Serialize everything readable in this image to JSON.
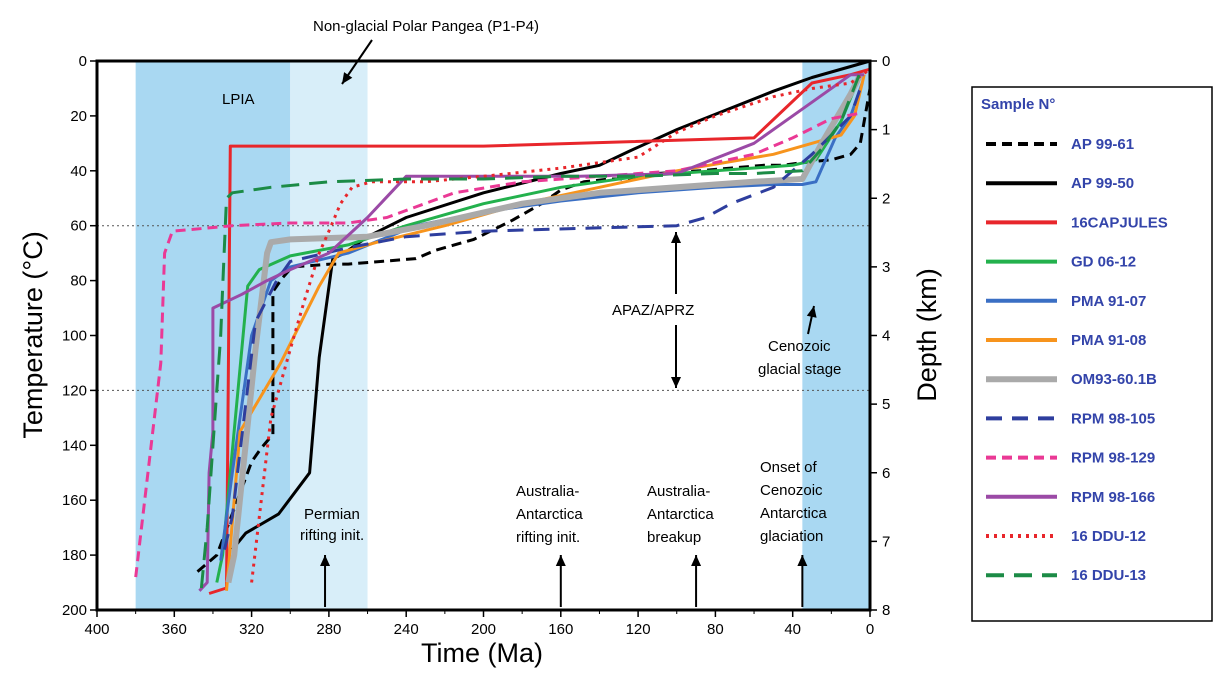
{
  "chart_data": {
    "type": "line",
    "xlabel": "Time (Ma)",
    "ylabel": "Temperature (°C)",
    "y2label": "Depth (km)",
    "xlim": [
      400,
      0
    ],
    "ylim": [
      0,
      200
    ],
    "y2lim": [
      0,
      8
    ],
    "x_ticks": [
      400,
      360,
      320,
      280,
      240,
      200,
      160,
      120,
      80,
      40,
      0
    ],
    "y_ticks": [
      0,
      20,
      40,
      60,
      80,
      100,
      120,
      140,
      160,
      180,
      200
    ],
    "y2_ticks": [
      0,
      1,
      2,
      3,
      4,
      5,
      6,
      7,
      8
    ],
    "legend_title": "Sample N°",
    "legend_position": "right",
    "regions": [
      {
        "name": "LPIA",
        "label": "LPIA",
        "x": [
          380,
          300
        ],
        "color": "#a9d8f2"
      },
      {
        "name": "non-glacial",
        "label": "",
        "x": [
          300,
          260
        ],
        "color": "#d8eef9"
      },
      {
        "name": "cenozoic-glacial",
        "label": "",
        "x": [
          35,
          0
        ],
        "color": "#a9d8f2"
      }
    ],
    "hlines": [
      {
        "y": 60,
        "style": "dotted"
      },
      {
        "y": 120,
        "style": "dotted"
      }
    ],
    "annotations": {
      "non_glacial": "Non-glacial Polar Pangea (P1-P4)",
      "lpia": "LPIA",
      "apaz": "APAZ/APRZ",
      "cenozoic_glacial_1": "Cenozoic",
      "cenozoic_glacial_2": "glacial stage",
      "permian_1": "Permian",
      "permian_2": "rifting init.",
      "aa_rift_1": "Australia-",
      "aa_rift_2": "Antarctica",
      "aa_rift_3": "rifting init.",
      "aa_break_1": "Australia-",
      "aa_break_2": "Antarctica",
      "aa_break_3": "breakup",
      "onset_1": "Onset of",
      "onset_2": "Cenozoic",
      "onset_3": "Antarctica",
      "onset_4": "glaciation"
    },
    "event_arrows": [
      {
        "x": 282,
        "name": "permian-rifting"
      },
      {
        "x": 160,
        "name": "aa-rifting"
      },
      {
        "x": 90,
        "name": "aa-breakup"
      },
      {
        "x": 35,
        "name": "onset-glaciation"
      }
    ],
    "series": [
      {
        "name": "AP 99-61",
        "color": "#000000",
        "dash": "10,6",
        "width": 3,
        "points": [
          [
            348,
            186
          ],
          [
            338,
            180
          ],
          [
            330,
            165
          ],
          [
            320,
            146
          ],
          [
            315,
            141
          ],
          [
            309,
            136
          ],
          [
            309,
            84
          ],
          [
            304,
            79
          ],
          [
            299,
            75
          ],
          [
            279,
            74
          ],
          [
            270,
            74
          ],
          [
            235,
            72
          ],
          [
            225,
            69
          ],
          [
            205,
            65
          ],
          [
            185,
            58
          ],
          [
            170,
            52
          ],
          [
            160,
            47
          ],
          [
            148,
            44
          ],
          [
            135,
            43
          ],
          [
            120,
            43
          ],
          [
            110,
            41
          ],
          [
            88,
            40
          ],
          [
            72,
            39
          ],
          [
            55,
            38
          ],
          [
            45,
            38
          ],
          [
            35,
            37
          ],
          [
            20,
            36
          ],
          [
            10,
            34
          ],
          [
            5,
            30
          ],
          [
            0,
            10
          ]
        ]
      },
      {
        "name": "AP 99-50",
        "color": "#000000",
        "dash": "",
        "width": 3,
        "points": [
          [
            330,
            178
          ],
          [
            323,
            172
          ],
          [
            306,
            165
          ],
          [
            290,
            150
          ],
          [
            285,
            108
          ],
          [
            278,
            72
          ],
          [
            272,
            70
          ],
          [
            260,
            64
          ],
          [
            240,
            57
          ],
          [
            200,
            48
          ],
          [
            160,
            41
          ],
          [
            140,
            38
          ],
          [
            125,
            33
          ],
          [
            100,
            25
          ],
          [
            50,
            11
          ],
          [
            30,
            6
          ],
          [
            0,
            0
          ]
        ]
      },
      {
        "name": "16CAPJULES",
        "color": "#e8262b",
        "dash": "",
        "width": 3,
        "points": [
          [
            342,
            194
          ],
          [
            333,
            192
          ],
          [
            331,
            31
          ],
          [
            260,
            31
          ],
          [
            200,
            31
          ],
          [
            60,
            28
          ],
          [
            30,
            8
          ],
          [
            10,
            5
          ],
          [
            0,
            3
          ]
        ]
      },
      {
        "name": "GD 06-12",
        "color": "#23b14d",
        "dash": "",
        "width": 3,
        "points": [
          [
            338,
            190
          ],
          [
            335,
            180
          ],
          [
            322,
            82
          ],
          [
            316,
            76
          ],
          [
            300,
            71
          ],
          [
            270,
            67
          ],
          [
            240,
            60
          ],
          [
            200,
            52
          ],
          [
            160,
            46
          ],
          [
            120,
            42
          ],
          [
            80,
            40
          ],
          [
            40,
            38
          ],
          [
            28,
            36
          ],
          [
            15,
            22
          ],
          [
            5,
            5
          ]
        ]
      },
      {
        "name": "PMA 91-07",
        "color": "#3a6fc4",
        "dash": "",
        "width": 3,
        "points": [
          [
            336,
            182
          ],
          [
            330,
            150
          ],
          [
            320,
            100
          ],
          [
            310,
            80
          ],
          [
            300,
            75
          ],
          [
            270,
            70
          ],
          [
            235,
            60
          ],
          [
            200,
            55
          ],
          [
            160,
            51
          ],
          [
            120,
            48
          ],
          [
            80,
            46
          ],
          [
            50,
            45
          ],
          [
            35,
            45
          ],
          [
            28,
            44
          ],
          [
            18,
            28
          ],
          [
            10,
            20
          ],
          [
            4,
            8
          ]
        ]
      },
      {
        "name": "PMA 91-08",
        "color": "#f7941d",
        "dash": "",
        "width": 3,
        "points": [
          [
            333,
            193
          ],
          [
            326,
            135
          ],
          [
            305,
            110
          ],
          [
            285,
            82
          ],
          [
            275,
            70
          ],
          [
            255,
            66
          ],
          [
            220,
            60
          ],
          [
            180,
            52
          ],
          [
            140,
            46
          ],
          [
            100,
            40
          ],
          [
            50,
            34
          ],
          [
            30,
            30
          ],
          [
            15,
            27
          ],
          [
            8,
            20
          ],
          [
            3,
            5
          ]
        ]
      },
      {
        "name": "OM93-60.1B",
        "color": "#aaaaaa",
        "dash": "",
        "width": 6,
        "points": [
          [
            332,
            190
          ],
          [
            329,
            180
          ],
          [
            318,
            105
          ],
          [
            312,
            70
          ],
          [
            310,
            66
          ],
          [
            300,
            65
          ],
          [
            260,
            64
          ],
          [
            230,
            60
          ],
          [
            180,
            52
          ],
          [
            140,
            48
          ],
          [
            100,
            46
          ],
          [
            60,
            44
          ],
          [
            35,
            43
          ],
          [
            25,
            30
          ],
          [
            10,
            12
          ],
          [
            5,
            5
          ]
        ]
      },
      {
        "name": "RPM 98-105",
        "color": "#2e3e9e",
        "dash": "16,10",
        "width": 3,
        "points": [
          [
            334,
            178
          ],
          [
            330,
            166
          ],
          [
            318,
            95
          ],
          [
            307,
            80
          ],
          [
            300,
            73
          ],
          [
            270,
            68
          ],
          [
            240,
            64
          ],
          [
            200,
            62
          ],
          [
            150,
            61
          ],
          [
            100,
            60
          ],
          [
            85,
            57
          ],
          [
            72,
            52
          ],
          [
            50,
            46
          ],
          [
            30,
            34
          ],
          [
            10,
            20
          ],
          [
            5,
            10
          ]
        ]
      },
      {
        "name": "RPM 98-129",
        "color": "#ea3995",
        "dash": "10,6",
        "width": 3,
        "points": [
          [
            380,
            188
          ],
          [
            367,
            110
          ],
          [
            365,
            70
          ],
          [
            361,
            62
          ],
          [
            345,
            61
          ],
          [
            330,
            60
          ],
          [
            300,
            59
          ],
          [
            270,
            59
          ],
          [
            250,
            57
          ],
          [
            215,
            48
          ],
          [
            180,
            44
          ],
          [
            140,
            42
          ],
          [
            100,
            40
          ],
          [
            60,
            34
          ],
          [
            40,
            28
          ],
          [
            20,
            21
          ],
          [
            5,
            19
          ]
        ]
      },
      {
        "name": "RPM 98-166",
        "color": "#9b4aa6",
        "dash": "",
        "width": 3,
        "points": [
          [
            347,
            193
          ],
          [
            343,
            190
          ],
          [
            342,
            150
          ],
          [
            340,
            135
          ],
          [
            340,
            90
          ],
          [
            325,
            85
          ],
          [
            312,
            80
          ],
          [
            300,
            76
          ],
          [
            280,
            70
          ],
          [
            260,
            57
          ],
          [
            240,
            42
          ],
          [
            200,
            42
          ],
          [
            150,
            42
          ],
          [
            100,
            41
          ],
          [
            60,
            30
          ],
          [
            30,
            15
          ],
          [
            10,
            5
          ],
          [
            3,
            5
          ]
        ]
      },
      {
        "name": "16 DDU-12",
        "color": "#e8262b",
        "dash": "3,5",
        "width": 3,
        "points": [
          [
            320,
            190
          ],
          [
            318,
            178
          ],
          [
            310,
            130
          ],
          [
            300,
            105
          ],
          [
            293,
            88
          ],
          [
            285,
            70
          ],
          [
            280,
            62
          ],
          [
            274,
            52
          ],
          [
            268,
            46
          ],
          [
            258,
            44
          ],
          [
            230,
            44
          ],
          [
            200,
            42
          ],
          [
            160,
            39
          ],
          [
            120,
            35
          ],
          [
            100,
            26
          ],
          [
            80,
            20
          ],
          [
            50,
            13
          ],
          [
            30,
            10
          ],
          [
            10,
            8
          ],
          [
            0,
            3
          ]
        ]
      },
      {
        "name": "16 DDU-13",
        "color": "#1c8b46",
        "dash": "18,10",
        "width": 3,
        "points": [
          [
            346,
            192
          ],
          [
            343,
            170
          ],
          [
            338,
            120
          ],
          [
            336,
            100
          ],
          [
            335,
            83
          ],
          [
            333,
            50
          ],
          [
            330,
            48
          ],
          [
            310,
            46
          ],
          [
            280,
            44
          ],
          [
            240,
            43
          ],
          [
            200,
            43
          ],
          [
            160,
            42
          ],
          [
            120,
            42
          ],
          [
            80,
            41
          ],
          [
            60,
            41
          ],
          [
            35,
            40
          ],
          [
            25,
            32
          ],
          [
            15,
            22
          ],
          [
            5,
            4
          ]
        ]
      }
    ]
  }
}
